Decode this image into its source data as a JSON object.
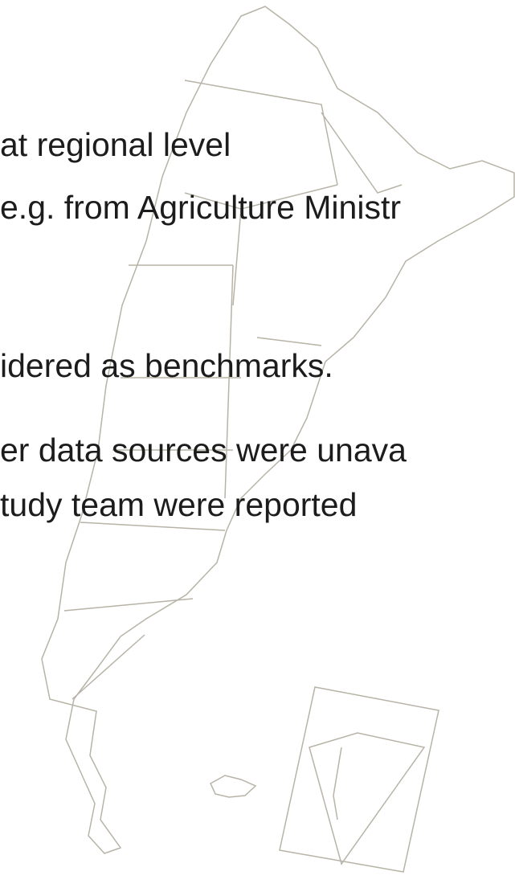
{
  "text_lines": [
    "at regional level",
    "e.g. from Agriculture Ministr",
    "idered as benchmarks.",
    "er data sources were unava",
    "tudy team were reported"
  ]
}
